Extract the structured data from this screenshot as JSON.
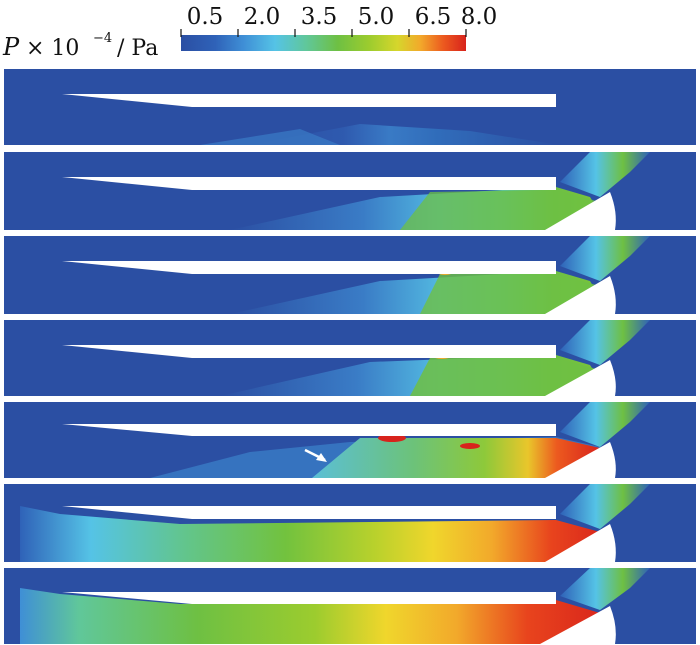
{
  "colorbar": {
    "label_symbol": "P",
    "label_mult": "× 10",
    "label_exp": "−4",
    "label_unit": "/ Pa",
    "ticks": [
      "0.5",
      "2.0",
      "3.5",
      "5.0",
      "6.5",
      "8.0"
    ],
    "range": [
      0.5,
      8.0
    ],
    "colormap": [
      "#2b4fa3",
      "#2f62b8",
      "#3f8fd6",
      "#55c3e6",
      "#60c79a",
      "#6ec043",
      "#9ccc2e",
      "#d6d62c",
      "#f2a92b",
      "#ec5a1f",
      "#d8231c"
    ]
  },
  "colors": {
    "background": "#2b4fa3",
    "body": "#ffffff",
    "separator": "#ffffff",
    "arrow": "#ffffff"
  },
  "panels": [
    {
      "pressure_level": 0.04,
      "ramp_reach": 0.0
    },
    {
      "pressure_level": 0.45,
      "ramp_reach": 0.2
    },
    {
      "pressure_level": 0.5,
      "ramp_reach": 0.25
    },
    {
      "pressure_level": 0.55,
      "ramp_reach": 0.3
    },
    {
      "pressure_level": 0.75,
      "ramp_reach": 0.45
    },
    {
      "pressure_level": 0.95,
      "ramp_reach": 0.85
    },
    {
      "pressure_level": 1.0,
      "ramp_reach": 1.0
    }
  ]
}
